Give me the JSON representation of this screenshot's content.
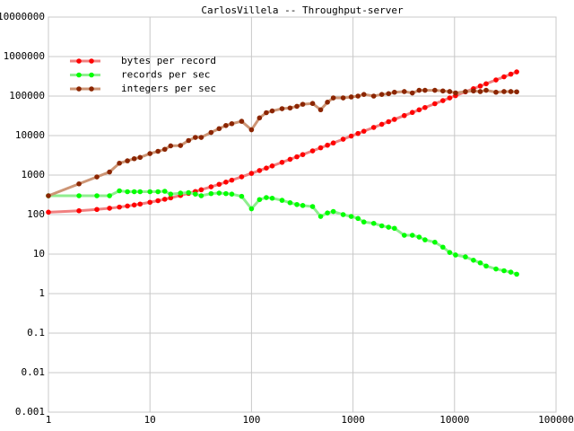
{
  "chart_data": {
    "type": "line",
    "title": "CarlosVillela -- Throughput-server",
    "x": [
      1,
      2,
      3,
      4,
      5,
      6,
      7,
      8,
      10,
      12,
      14,
      16,
      20,
      24,
      28,
      32,
      40,
      48,
      56,
      64,
      80,
      100,
      120,
      140,
      160,
      200,
      240,
      280,
      320,
      400,
      480,
      560,
      640,
      800,
      960,
      1120,
      1280,
      1600,
      1920,
      2240,
      2560,
      3200,
      3840,
      4480,
      5120,
      6400,
      7680,
      8960,
      10240,
      12800,
      15360,
      17920,
      20480,
      25600,
      30720,
      35840,
      40960
    ],
    "series": [
      {
        "name": "bytes per record",
        "color": "#ff0000",
        "line_color": "#f08080",
        "values": [
          115,
          125,
          135,
          145,
          155,
          165,
          175,
          185,
          205,
          225,
          245,
          265,
          305,
          345,
          385,
          425,
          505,
          585,
          665,
          745,
          905,
          1105,
          1305,
          1505,
          1705,
          2105,
          2505,
          2905,
          3305,
          4105,
          4905,
          5705,
          6505,
          8105,
          9705,
          11305,
          12905,
          16105,
          19305,
          22505,
          25705,
          32105,
          38505,
          44905,
          51305,
          64105,
          76905,
          89705,
          102505,
          128105,
          153705,
          179305,
          204905,
          256105,
          307305,
          358505,
          409705
        ]
      },
      {
        "name": "records per sec",
        "color": "#00ff00",
        "line_color": "#90ee90",
        "values": [
          300,
          300,
          300,
          300,
          400,
          380,
          380,
          380,
          380,
          380,
          390,
          330,
          350,
          360,
          330,
          300,
          340,
          350,
          340,
          330,
          290,
          140,
          240,
          270,
          260,
          230,
          200,
          180,
          170,
          160,
          90,
          110,
          120,
          100,
          90,
          80,
          65,
          60,
          52,
          48,
          45,
          30,
          30,
          27,
          23,
          20,
          15,
          11,
          9.5,
          8.5,
          7,
          6,
          5,
          4.2,
          3.8,
          3.5,
          3.1
        ]
      },
      {
        "name": "integers per sec",
        "color": "#8b2500",
        "line_color": "#cd9575",
        "values": [
          300,
          600,
          900,
          1200,
          2000,
          2300,
          2600,
          2800,
          3500,
          4000,
          4500,
          5500,
          5600,
          7500,
          9000,
          9000,
          12000,
          15000,
          18000,
          20000,
          23000,
          14000,
          28000,
          38000,
          42000,
          48000,
          50000,
          55000,
          62000,
          65000,
          45000,
          70000,
          90000,
          90000,
          95000,
          100000,
          110000,
          100000,
          110000,
          115000,
          125000,
          130000,
          120000,
          140000,
          140000,
          140000,
          135000,
          130000,
          120000,
          130000,
          135000,
          130000,
          140000,
          125000,
          130000,
          130000,
          128000
        ]
      }
    ],
    "xlim": [
      1,
      100000
    ],
    "xticks": [
      1,
      10,
      100,
      1000,
      10000,
      100000
    ],
    "ylim": [
      0.001,
      10000000
    ],
    "yticks": [
      10000000,
      1000000,
      100000,
      10000,
      1000,
      100,
      10,
      1,
      0.1,
      0.01,
      0.001
    ],
    "xscale": "log",
    "yscale": "log",
    "grid": true,
    "legend": "upper left"
  }
}
